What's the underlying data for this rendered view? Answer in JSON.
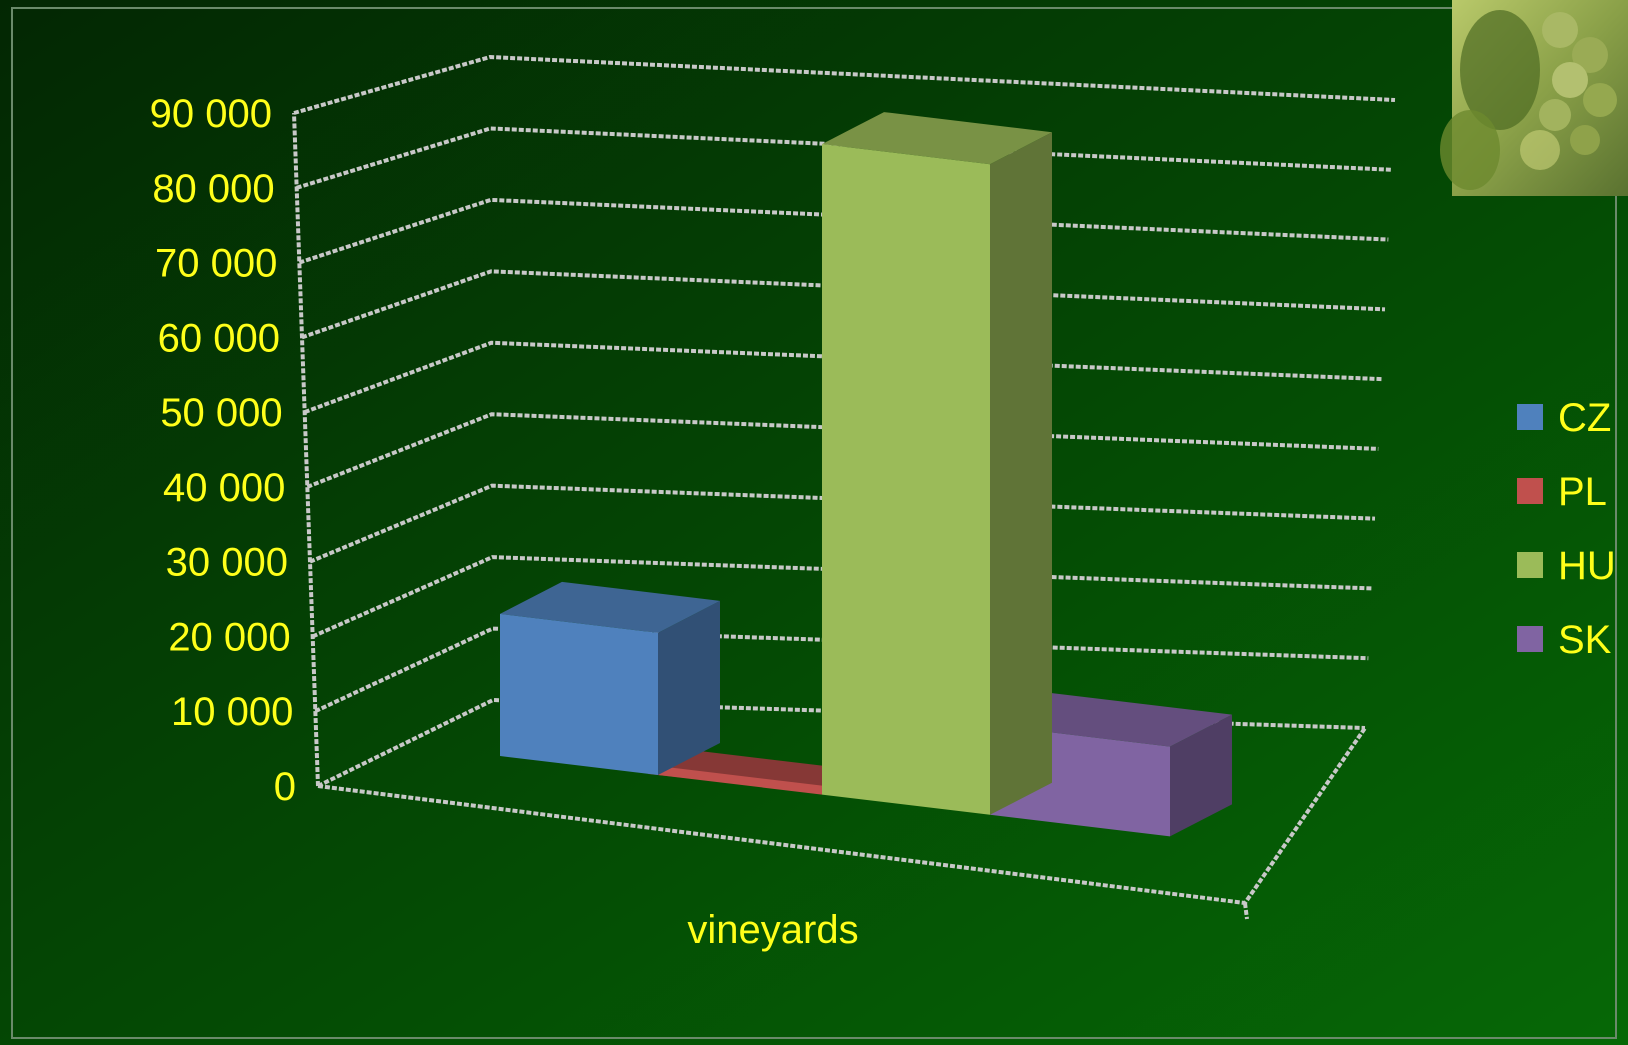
{
  "colors": {
    "text": "#ffff1a",
    "grid": "#c8c8c8",
    "background_light": "#056005",
    "background_dark": "#032603"
  },
  "decoration": {
    "photo": "grape-cluster-photo"
  },
  "chart_data": {
    "type": "bar",
    "categories": [
      "vineyards"
    ],
    "series": [
      {
        "name": "CZ",
        "values": [
          19000
        ],
        "color": "#4f81bd"
      },
      {
        "name": "PL",
        "values": [
          1200
        ],
        "color": "#c0504d"
      },
      {
        "name": "HU",
        "values": [
          87000
        ],
        "color": "#9bbb59"
      },
      {
        "name": "SK",
        "values": [
          12000
        ],
        "color": "#8064a2"
      }
    ],
    "y_ticks": [
      "0",
      "10 000",
      "20 000",
      "30 000",
      "40 000",
      "50 000",
      "60 000",
      "70 000",
      "80 000",
      "90 000"
    ],
    "ylim": [
      0,
      90000
    ],
    "grid": true,
    "legend": "right",
    "style": "3d-clustered-column"
  }
}
